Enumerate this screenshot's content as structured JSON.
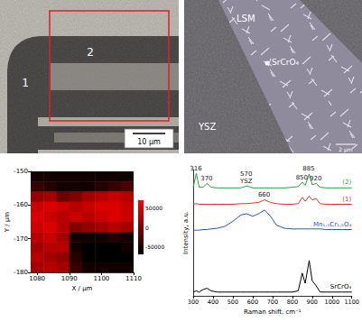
{
  "optical_image": {
    "labels": [
      "1",
      "2"
    ],
    "scale_bar": "10 µm"
  },
  "sem_image": {
    "labels": [
      "LSM",
      "SrCrO₄",
      "YSZ"
    ],
    "scale_bar": "2 µm"
  },
  "chart_data": [
    {
      "type": "heatmap",
      "x_label": "X / µm",
      "y_label": "Y / µm",
      "x": [
        1080,
        1084,
        1088,
        1092,
        1096,
        1100,
        1104,
        1108
      ],
      "y": [
        -151.5,
        -154.5,
        -157.5,
        -160.5,
        -163.5,
        -166.5,
        -169.5,
        -172.5,
        -175.5,
        -178.5
      ],
      "cells": [
        [
          -60000,
          -60000,
          -60000,
          -60000,
          -60000,
          -60000,
          -60000,
          -60000
        ],
        [
          -40000,
          -50000,
          -60000,
          -60000,
          -60000,
          -50000,
          -40000,
          -30000
        ],
        [
          10000,
          20000,
          -10000,
          0,
          20000,
          30000,
          40000,
          30000
        ],
        [
          40000,
          50000,
          40000,
          30000,
          40000,
          50000,
          50000,
          40000
        ],
        [
          50000,
          40000,
          30000,
          40000,
          30000,
          40000,
          50000,
          40000
        ],
        [
          40000,
          50000,
          30000,
          0,
          10000,
          20000,
          30000,
          20000
        ],
        [
          30000,
          40000,
          20000,
          -60000,
          -60000,
          -60000,
          -50000,
          -60000
        ],
        [
          20000,
          30000,
          30000,
          -60000,
          -70000,
          -70000,
          -70000,
          -60000
        ],
        [
          30000,
          20000,
          10000,
          -50000,
          -70000,
          -70000,
          -70000,
          -70000
        ],
        [
          20000,
          30000,
          20000,
          -40000,
          -60000,
          -60000,
          -60000,
          -60000
        ]
      ],
      "xlim": [
        1078,
        1110
      ],
      "xticks": [
        1080,
        1090,
        1100,
        1110
      ],
      "ylim": [
        -180,
        -150
      ],
      "yticks": [
        -180,
        -170,
        -160,
        -150
      ],
      "colorbar_range": [
        -70000,
        70000
      ],
      "colorbar_ticks": [
        -50000,
        0,
        50000
      ],
      "color": "#ff0000"
    },
    {
      "type": "line",
      "x_label": "Raman shift, cm⁻¹",
      "y_label": "Intensity, a.u.",
      "x": [
        300,
        316,
        330,
        350,
        370,
        390,
        420,
        460,
        500,
        540,
        570,
        600,
        630,
        660,
        690,
        720,
        760,
        800,
        830,
        850,
        865,
        885,
        900,
        920,
        940,
        970,
        1000,
        1050,
        1100
      ],
      "xlim": [
        300,
        1100
      ],
      "xticks": [
        300,
        400,
        500,
        600,
        700,
        800,
        900,
        1000,
        1100
      ],
      "ylim": [
        0,
        100
      ],
      "tick_labels": "x",
      "series": [
        {
          "name": "(2)",
          "color": "#2e9e3e",
          "values": [
            86,
            97,
            86,
            86,
            89,
            86,
            85.5,
            85.5,
            85.5,
            85.5,
            87,
            85.5,
            85.5,
            85.5,
            85.5,
            85.5,
            85.5,
            86,
            86.5,
            90,
            87.5,
            96.5,
            88,
            89,
            86,
            85.5,
            85.5,
            85.5,
            85.5
          ],
          "annotations": [
            {
              "text": "316",
              "x": 316
            },
            {
              "text": "370",
              "x": 370
            },
            {
              "text": "570",
              "x": 570
            },
            {
              "text": "YSZ",
              "x": 570
            },
            {
              "text": "850",
              "x": 850
            },
            {
              "text": "885",
              "x": 885
            },
            {
              "text": "920",
              "x": 920
            }
          ]
        },
        {
          "name": "(1)",
          "color": "#e4302b",
          "values": [
            72.5,
            73,
            72.5,
            72.5,
            72.5,
            72.5,
            72.5,
            72.5,
            72.5,
            73,
            73,
            73.5,
            74,
            76,
            74,
            73,
            72.5,
            72.5,
            73,
            78,
            75,
            79,
            76,
            77,
            73,
            72.5,
            72.5,
            72.5,
            72.5
          ],
          "annotations": [
            {
              "text": "660",
              "x": 660
            }
          ]
        },
        {
          "name": "Mn₁.₅Cr₁.₅O₄",
          "color": "#2f4fd8",
          "values": [
            52,
            52,
            52,
            52.5,
            52.5,
            53,
            53.5,
            55,
            59,
            64,
            65,
            63,
            65,
            68,
            63,
            56,
            53.5,
            53,
            53,
            53,
            53,
            53,
            53,
            53,
            53,
            52.5,
            52.5,
            52.5,
            52.5
          ]
        },
        {
          "name": "SrCrO₄",
          "color": "#000000",
          "values": [
            3,
            4,
            3,
            5,
            6,
            4,
            3,
            3,
            3,
            3,
            3,
            3,
            3,
            3,
            3,
            3,
            3,
            3,
            4,
            18,
            10,
            28,
            12,
            8,
            3,
            3,
            3,
            3,
            3
          ]
        }
      ]
    }
  ]
}
